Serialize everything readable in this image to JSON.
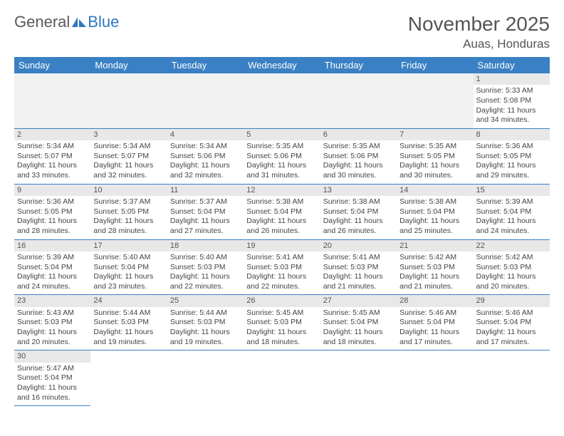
{
  "logo": {
    "part1": "General",
    "part2": "Blue"
  },
  "title": "November 2025",
  "location": "Auas, Honduras",
  "colors": {
    "header_bg": "#3a80c4",
    "header_text": "#ffffff",
    "daynum_bg": "#e8e8e8",
    "border": "#3a80c4",
    "logo_blue": "#2f78bd"
  },
  "dayHeaders": [
    "Sunday",
    "Monday",
    "Tuesday",
    "Wednesday",
    "Thursday",
    "Friday",
    "Saturday"
  ],
  "weeks": [
    [
      null,
      null,
      null,
      null,
      null,
      null,
      {
        "n": "1",
        "sr": "Sunrise: 5:33 AM",
        "ss": "Sunset: 5:08 PM",
        "dl": "Daylight: 11 hours and 34 minutes."
      }
    ],
    [
      {
        "n": "2",
        "sr": "Sunrise: 5:34 AM",
        "ss": "Sunset: 5:07 PM",
        "dl": "Daylight: 11 hours and 33 minutes."
      },
      {
        "n": "3",
        "sr": "Sunrise: 5:34 AM",
        "ss": "Sunset: 5:07 PM",
        "dl": "Daylight: 11 hours and 32 minutes."
      },
      {
        "n": "4",
        "sr": "Sunrise: 5:34 AM",
        "ss": "Sunset: 5:06 PM",
        "dl": "Daylight: 11 hours and 32 minutes."
      },
      {
        "n": "5",
        "sr": "Sunrise: 5:35 AM",
        "ss": "Sunset: 5:06 PM",
        "dl": "Daylight: 11 hours and 31 minutes."
      },
      {
        "n": "6",
        "sr": "Sunrise: 5:35 AM",
        "ss": "Sunset: 5:06 PM",
        "dl": "Daylight: 11 hours and 30 minutes."
      },
      {
        "n": "7",
        "sr": "Sunrise: 5:35 AM",
        "ss": "Sunset: 5:05 PM",
        "dl": "Daylight: 11 hours and 30 minutes."
      },
      {
        "n": "8",
        "sr": "Sunrise: 5:36 AM",
        "ss": "Sunset: 5:05 PM",
        "dl": "Daylight: 11 hours and 29 minutes."
      }
    ],
    [
      {
        "n": "9",
        "sr": "Sunrise: 5:36 AM",
        "ss": "Sunset: 5:05 PM",
        "dl": "Daylight: 11 hours and 28 minutes."
      },
      {
        "n": "10",
        "sr": "Sunrise: 5:37 AM",
        "ss": "Sunset: 5:05 PM",
        "dl": "Daylight: 11 hours and 28 minutes."
      },
      {
        "n": "11",
        "sr": "Sunrise: 5:37 AM",
        "ss": "Sunset: 5:04 PM",
        "dl": "Daylight: 11 hours and 27 minutes."
      },
      {
        "n": "12",
        "sr": "Sunrise: 5:38 AM",
        "ss": "Sunset: 5:04 PM",
        "dl": "Daylight: 11 hours and 26 minutes."
      },
      {
        "n": "13",
        "sr": "Sunrise: 5:38 AM",
        "ss": "Sunset: 5:04 PM",
        "dl": "Daylight: 11 hours and 26 minutes."
      },
      {
        "n": "14",
        "sr": "Sunrise: 5:38 AM",
        "ss": "Sunset: 5:04 PM",
        "dl": "Daylight: 11 hours and 25 minutes."
      },
      {
        "n": "15",
        "sr": "Sunrise: 5:39 AM",
        "ss": "Sunset: 5:04 PM",
        "dl": "Daylight: 11 hours and 24 minutes."
      }
    ],
    [
      {
        "n": "16",
        "sr": "Sunrise: 5:39 AM",
        "ss": "Sunset: 5:04 PM",
        "dl": "Daylight: 11 hours and 24 minutes."
      },
      {
        "n": "17",
        "sr": "Sunrise: 5:40 AM",
        "ss": "Sunset: 5:04 PM",
        "dl": "Daylight: 11 hours and 23 minutes."
      },
      {
        "n": "18",
        "sr": "Sunrise: 5:40 AM",
        "ss": "Sunset: 5:03 PM",
        "dl": "Daylight: 11 hours and 22 minutes."
      },
      {
        "n": "19",
        "sr": "Sunrise: 5:41 AM",
        "ss": "Sunset: 5:03 PM",
        "dl": "Daylight: 11 hours and 22 minutes."
      },
      {
        "n": "20",
        "sr": "Sunrise: 5:41 AM",
        "ss": "Sunset: 5:03 PM",
        "dl": "Daylight: 11 hours and 21 minutes."
      },
      {
        "n": "21",
        "sr": "Sunrise: 5:42 AM",
        "ss": "Sunset: 5:03 PM",
        "dl": "Daylight: 11 hours and 21 minutes."
      },
      {
        "n": "22",
        "sr": "Sunrise: 5:42 AM",
        "ss": "Sunset: 5:03 PM",
        "dl": "Daylight: 11 hours and 20 minutes."
      }
    ],
    [
      {
        "n": "23",
        "sr": "Sunrise: 5:43 AM",
        "ss": "Sunset: 5:03 PM",
        "dl": "Daylight: 11 hours and 20 minutes."
      },
      {
        "n": "24",
        "sr": "Sunrise: 5:44 AM",
        "ss": "Sunset: 5:03 PM",
        "dl": "Daylight: 11 hours and 19 minutes."
      },
      {
        "n": "25",
        "sr": "Sunrise: 5:44 AM",
        "ss": "Sunset: 5:03 PM",
        "dl": "Daylight: 11 hours and 19 minutes."
      },
      {
        "n": "26",
        "sr": "Sunrise: 5:45 AM",
        "ss": "Sunset: 5:03 PM",
        "dl": "Daylight: 11 hours and 18 minutes."
      },
      {
        "n": "27",
        "sr": "Sunrise: 5:45 AM",
        "ss": "Sunset: 5:04 PM",
        "dl": "Daylight: 11 hours and 18 minutes."
      },
      {
        "n": "28",
        "sr": "Sunrise: 5:46 AM",
        "ss": "Sunset: 5:04 PM",
        "dl": "Daylight: 11 hours and 17 minutes."
      },
      {
        "n": "29",
        "sr": "Sunrise: 5:46 AM",
        "ss": "Sunset: 5:04 PM",
        "dl": "Daylight: 11 hours and 17 minutes."
      }
    ],
    [
      {
        "n": "30",
        "sr": "Sunrise: 5:47 AM",
        "ss": "Sunset: 5:04 PM",
        "dl": "Daylight: 11 hours and 16 minutes."
      },
      null,
      null,
      null,
      null,
      null,
      null
    ]
  ]
}
